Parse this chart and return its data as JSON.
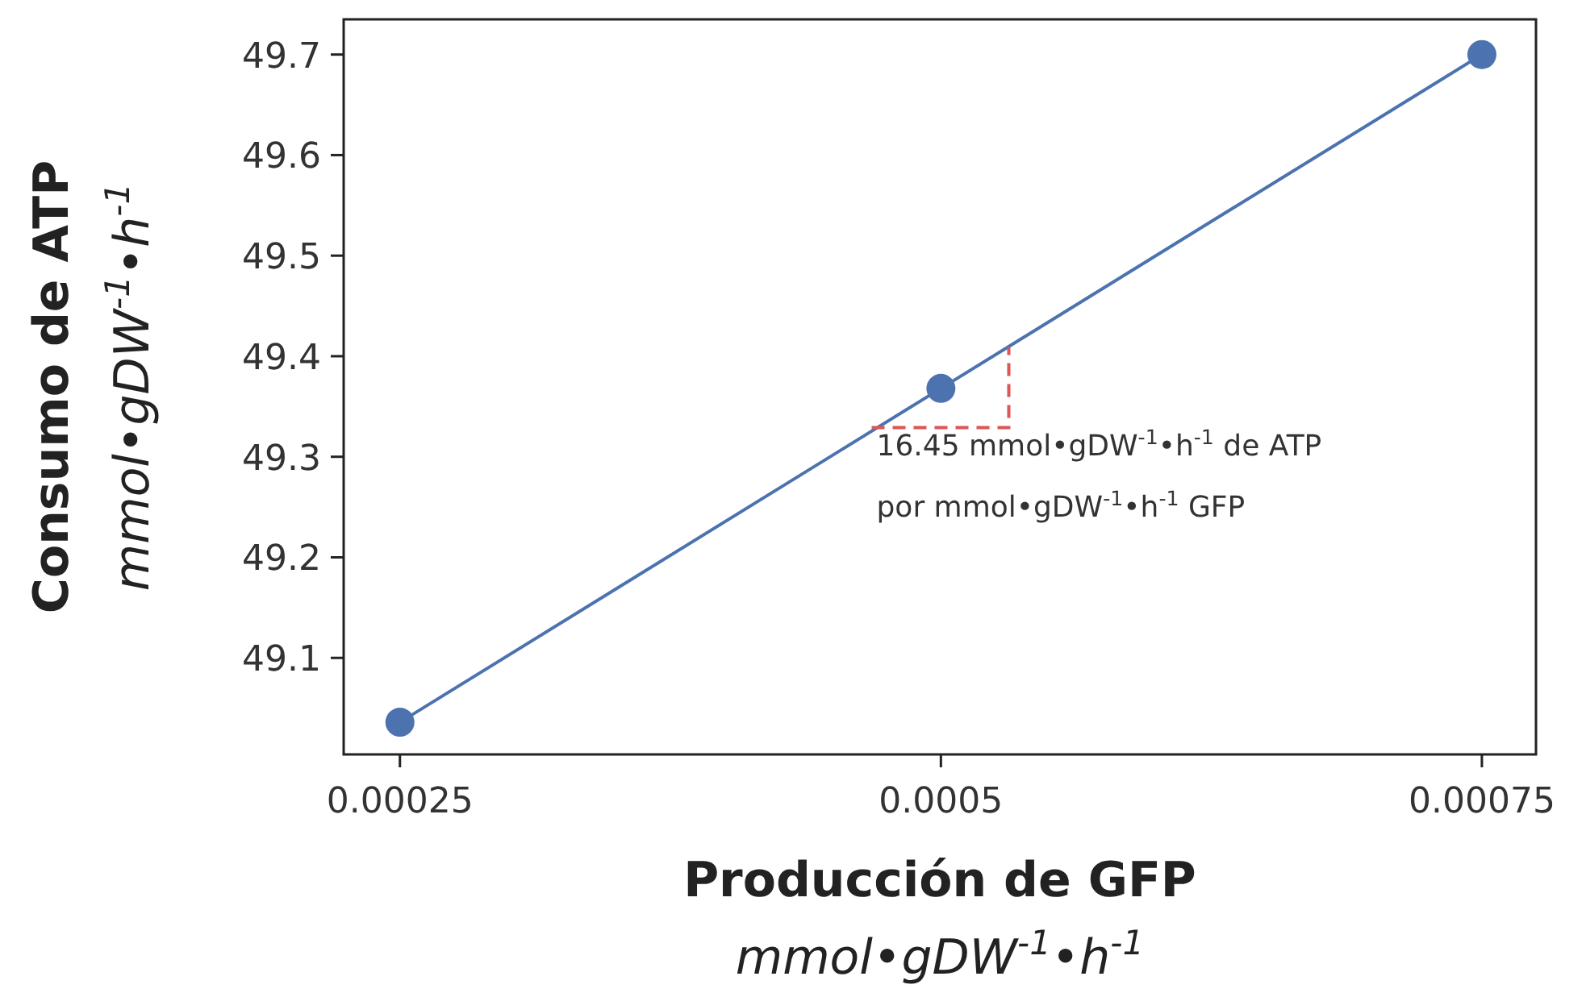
{
  "chart_data": {
    "type": "line",
    "xlabel": "Producción de GFP\nmmol•gDW$^{-1}$•h$^{-1}$",
    "ylabel": "Consumo de ATP\nmmol•gDW$^{-1}$•h$^{-1}$",
    "x": [
      0.00025,
      0.0005,
      0.00075
    ],
    "series": [
      {
        "color": "#4c72b0",
        "values": [
          49.036,
          49.368,
          49.7
        ]
      }
    ],
    "xlim": [
      0.000224,
      0.000775
    ],
    "ylim": [
      49.004,
      49.735
    ],
    "xticks": [
      0.00025,
      0.0005,
      0.00075
    ],
    "yticks": [
      49.1,
      49.2,
      49.3,
      49.4,
      49.5,
      49.6,
      49.7
    ],
    "marker": "circle",
    "line_style": "solid",
    "grid": false,
    "annotations": [
      {
        "text": "16.45 mmol•gDW$^{-1}$•h$^{-1}$ de ATP",
        "x": 0.000468,
        "y": 49.329
      },
      "por mmol•gDW$^{-1}$•h$^{-1}$ GFP"
    ]
  }
}
